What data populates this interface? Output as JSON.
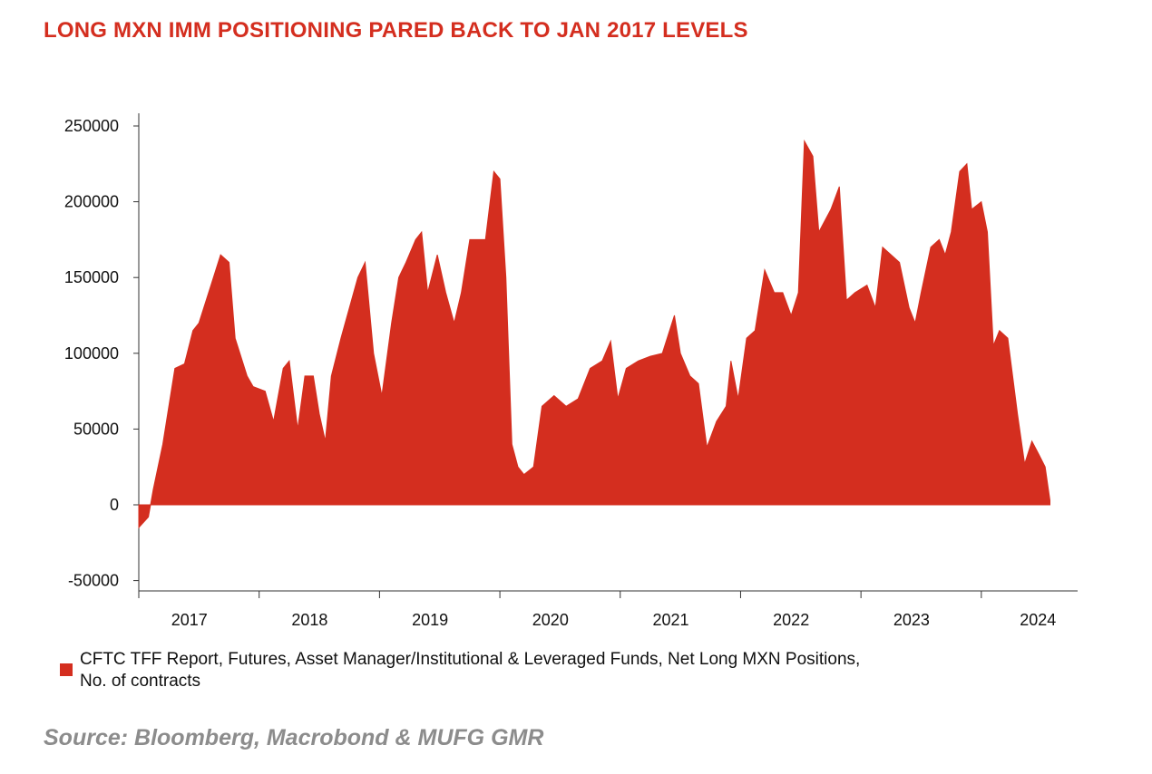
{
  "title": "LONG MXN IMM POSITIONING PARED BACK TO JAN 2017 LEVELS",
  "legend_label": "CFTC TFF Report, Futures, Asset Manager/Institutional & Leveraged Funds, Net Long MXN Positions,",
  "legend_label_line2": "No. of contracts",
  "source": "Source: Bloomberg, Macrobond & MUFG GMR",
  "colors": {
    "series": "#d42e1f",
    "title": "#d42e1f",
    "source": "#8c8c8c",
    "axis": "#333333"
  },
  "chart_data": {
    "type": "area",
    "title": "LONG MXN IMM POSITIONING PARED BACK TO JAN 2017 LEVELS",
    "xlabel": "",
    "ylabel": "",
    "ylim": [
      -50000,
      250000
    ],
    "xlim": [
      2016.5,
      2024.3
    ],
    "yticks": [
      -50000,
      0,
      50000,
      100000,
      150000,
      200000,
      250000
    ],
    "xtick_labels": [
      "2017",
      "2018",
      "2019",
      "2020",
      "2021",
      "2022",
      "2023",
      "2024"
    ],
    "grid": false,
    "legend_position": "bottom",
    "series": [
      {
        "name": "CFTC TFF Report, Futures, Asset Manager/Institutional & Leveraged Funds, Net Long MXN Positions, No. of contracts",
        "points": [
          [
            2016.5,
            -15000
          ],
          [
            2016.58,
            -8000
          ],
          [
            2016.62,
            10000
          ],
          [
            2016.7,
            40000
          ],
          [
            2016.8,
            90000
          ],
          [
            2016.88,
            93000
          ],
          [
            2016.95,
            115000
          ],
          [
            2017.0,
            120000
          ],
          [
            2017.1,
            145000
          ],
          [
            2017.18,
            165000
          ],
          [
            2017.25,
            160000
          ],
          [
            2017.3,
            110000
          ],
          [
            2017.4,
            85000
          ],
          [
            2017.45,
            78000
          ],
          [
            2017.55,
            75000
          ],
          [
            2017.62,
            55000
          ],
          [
            2017.7,
            90000
          ],
          [
            2017.75,
            95000
          ],
          [
            2017.82,
            50000
          ],
          [
            2017.88,
            85000
          ],
          [
            2017.95,
            85000
          ],
          [
            2018.0,
            60000
          ],
          [
            2018.05,
            42000
          ],
          [
            2018.1,
            85000
          ],
          [
            2018.18,
            110000
          ],
          [
            2018.25,
            130000
          ],
          [
            2018.32,
            150000
          ],
          [
            2018.38,
            160000
          ],
          [
            2018.45,
            100000
          ],
          [
            2018.52,
            72000
          ],
          [
            2018.6,
            120000
          ],
          [
            2018.66,
            150000
          ],
          [
            2018.72,
            160000
          ],
          [
            2018.8,
            175000
          ],
          [
            2018.85,
            180000
          ],
          [
            2018.9,
            140000
          ],
          [
            2018.98,
            165000
          ],
          [
            2019.05,
            140000
          ],
          [
            2019.12,
            120000
          ],
          [
            2019.18,
            140000
          ],
          [
            2019.25,
            175000
          ],
          [
            2019.32,
            175000
          ],
          [
            2019.38,
            175000
          ],
          [
            2019.45,
            220000
          ],
          [
            2019.5,
            215000
          ],
          [
            2019.55,
            150000
          ],
          [
            2019.6,
            40000
          ],
          [
            2019.65,
            25000
          ],
          [
            2019.7,
            20000
          ],
          [
            2019.78,
            25000
          ],
          [
            2019.85,
            65000
          ],
          [
            2019.95,
            72000
          ],
          [
            2020.05,
            65000
          ],
          [
            2020.15,
            70000
          ],
          [
            2020.25,
            90000
          ],
          [
            2020.35,
            95000
          ],
          [
            2020.42,
            108000
          ],
          [
            2020.48,
            70000
          ],
          [
            2020.55,
            90000
          ],
          [
            2020.65,
            95000
          ],
          [
            2020.75,
            98000
          ],
          [
            2020.85,
            100000
          ],
          [
            2020.95,
            125000
          ],
          [
            2021.0,
            100000
          ],
          [
            2021.08,
            85000
          ],
          [
            2021.15,
            80000
          ],
          [
            2021.22,
            38000
          ],
          [
            2021.3,
            55000
          ],
          [
            2021.38,
            65000
          ],
          [
            2021.42,
            95000
          ],
          [
            2021.48,
            70000
          ],
          [
            2021.55,
            110000
          ],
          [
            2021.62,
            115000
          ],
          [
            2021.7,
            155000
          ],
          [
            2021.78,
            140000
          ],
          [
            2021.85,
            140000
          ],
          [
            2021.92,
            125000
          ],
          [
            2021.98,
            140000
          ],
          [
            2022.03,
            240000
          ],
          [
            2022.1,
            230000
          ],
          [
            2022.15,
            180000
          ],
          [
            2022.25,
            195000
          ],
          [
            2022.32,
            210000
          ],
          [
            2022.38,
            135000
          ],
          [
            2022.45,
            140000
          ],
          [
            2022.55,
            145000
          ],
          [
            2022.62,
            130000
          ],
          [
            2022.68,
            170000
          ],
          [
            2022.75,
            165000
          ],
          [
            2022.82,
            160000
          ],
          [
            2022.9,
            130000
          ],
          [
            2022.95,
            120000
          ],
          [
            2023.0,
            140000
          ],
          [
            2023.08,
            170000
          ],
          [
            2023.15,
            175000
          ],
          [
            2023.2,
            165000
          ],
          [
            2023.25,
            180000
          ],
          [
            2023.32,
            220000
          ],
          [
            2023.38,
            225000
          ],
          [
            2023.42,
            195000
          ],
          [
            2023.5,
            200000
          ],
          [
            2023.55,
            180000
          ],
          [
            2023.6,
            105000
          ],
          [
            2023.65,
            115000
          ],
          [
            2023.72,
            110000
          ],
          [
            2023.8,
            60000
          ],
          [
            2023.86,
            27000
          ],
          [
            2023.92,
            42000
          ],
          [
            2023.98,
            33000
          ],
          [
            2024.03,
            25000
          ],
          [
            2024.07,
            3000
          ]
        ]
      }
    ]
  }
}
